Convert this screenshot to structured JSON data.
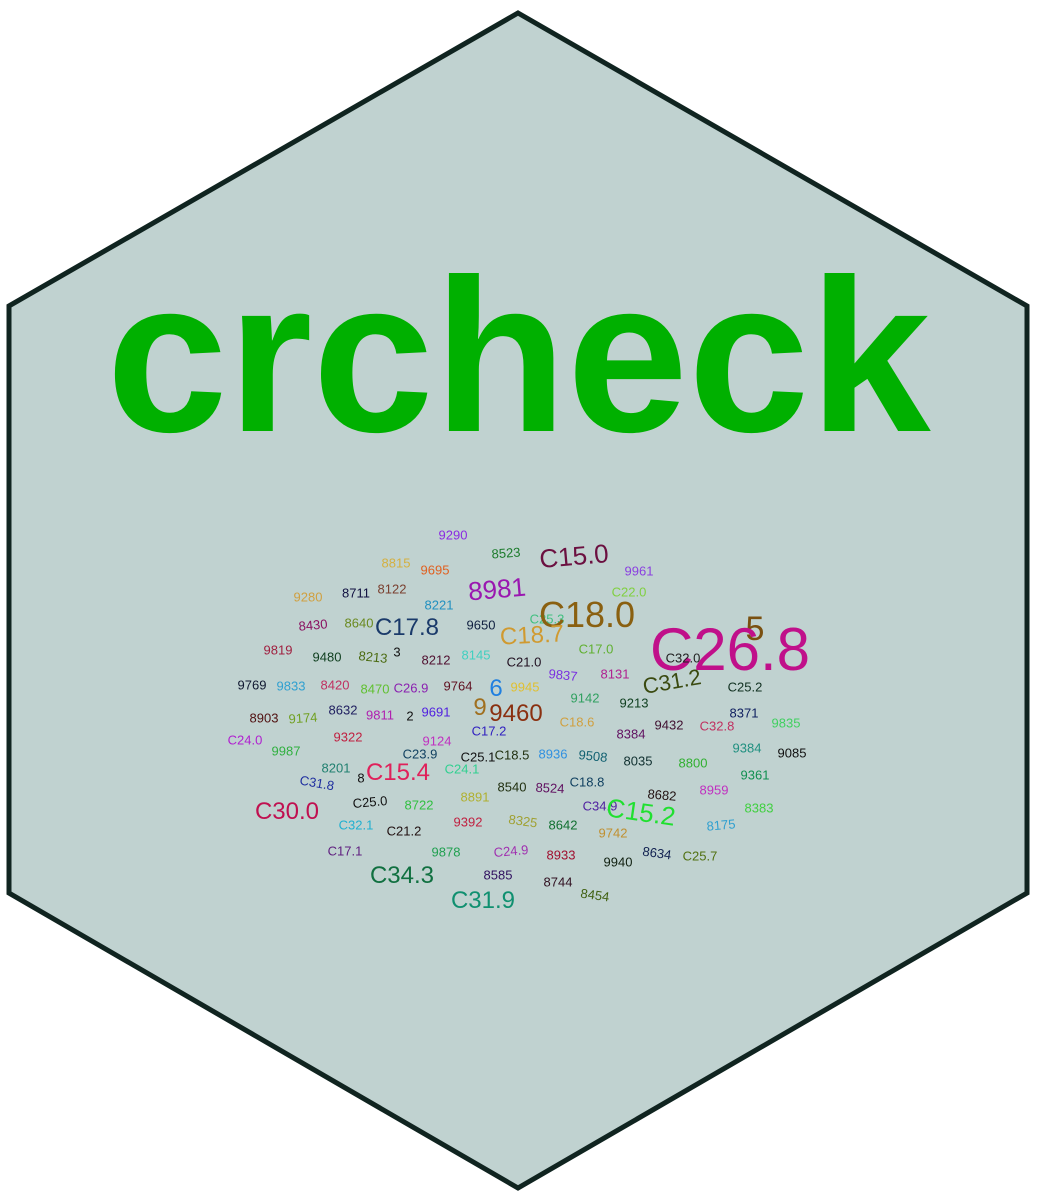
{
  "sticker": {
    "fill": "#c0d2d0",
    "stroke": "#102420"
  },
  "title": {
    "text": "crcheck",
    "color": "#00b000"
  },
  "word_cloud": [
    {
      "text": "9290",
      "color": "#8a2be2"
    },
    {
      "text": "8523",
      "color": "#1a7a2a"
    },
    {
      "text": "C15.0",
      "color": "#6b1040"
    },
    {
      "text": "8815",
      "color": "#d4b040"
    },
    {
      "text": "9695",
      "color": "#e06020"
    },
    {
      "text": "8981",
      "color": "#9a18b0"
    },
    {
      "text": "9961",
      "color": "#8a40e0"
    },
    {
      "text": "9280",
      "color": "#d0a040"
    },
    {
      "text": "8711",
      "color": "#101040"
    },
    {
      "text": "8122",
      "color": "#7a4030"
    },
    {
      "text": "8221",
      "color": "#2090c0"
    },
    {
      "text": "C25.3",
      "color": "#40c080"
    },
    {
      "text": "C22.0",
      "color": "#80d040"
    },
    {
      "text": "C18.0",
      "color": "#8a6010"
    },
    {
      "text": "8430",
      "color": "#8a1060"
    },
    {
      "text": "8640",
      "color": "#6a8a20"
    },
    {
      "text": "C17.8",
      "color": "#1a3a6a"
    },
    {
      "text": "9650",
      "color": "#102040"
    },
    {
      "text": "C18.7",
      "color": "#d09a30"
    },
    {
      "text": "5",
      "color": "#7a5010"
    },
    {
      "text": "C26.8",
      "color": "#c0108a"
    },
    {
      "text": "9819",
      "color": "#a02040"
    },
    {
      "text": "9480",
      "color": "#104020"
    },
    {
      "text": "8213",
      "color": "#4a6a10"
    },
    {
      "text": "3",
      "color": "#101010"
    },
    {
      "text": "8212",
      "color": "#501030"
    },
    {
      "text": "8145",
      "color": "#40d0c0"
    },
    {
      "text": "C21.0",
      "color": "#201020"
    },
    {
      "text": "C17.0",
      "color": "#60b030"
    },
    {
      "text": "C32.0",
      "color": "#202020"
    },
    {
      "text": "9837",
      "color": "#7a30e0"
    },
    {
      "text": "8131",
      "color": "#b02090"
    },
    {
      "text": "C31.2",
      "color": "#3a4a10"
    },
    {
      "text": "C25.2",
      "color": "#103020"
    },
    {
      "text": "9769",
      "color": "#101830"
    },
    {
      "text": "9833",
      "color": "#30a0d0"
    },
    {
      "text": "8420",
      "color": "#c03060"
    },
    {
      "text": "8470",
      "color": "#60c030"
    },
    {
      "text": "C26.9",
      "color": "#8a20b0"
    },
    {
      "text": "9764",
      "color": "#601020"
    },
    {
      "text": "6",
      "color": "#2080e0"
    },
    {
      "text": "9945",
      "color": "#e0c030"
    },
    {
      "text": "9142",
      "color": "#30a060"
    },
    {
      "text": "9213",
      "color": "#104020"
    },
    {
      "text": "8903",
      "color": "#501010"
    },
    {
      "text": "9174",
      "color": "#70a020"
    },
    {
      "text": "8632",
      "color": "#202060"
    },
    {
      "text": "9811",
      "color": "#b020b0"
    },
    {
      "text": "2",
      "color": "#101010"
    },
    {
      "text": "9691",
      "color": "#5020e0"
    },
    {
      "text": "9",
      "color": "#a07020"
    },
    {
      "text": "9460",
      "color": "#8a3010"
    },
    {
      "text": "C18.6",
      "color": "#d0a040"
    },
    {
      "text": "8384",
      "color": "#601060"
    },
    {
      "text": "9432",
      "color": "#401030"
    },
    {
      "text": "C32.8",
      "color": "#c03060"
    },
    {
      "text": "8371",
      "color": "#102060"
    },
    {
      "text": "9835",
      "color": "#40d060"
    },
    {
      "text": "C24.0",
      "color": "#b020d0"
    },
    {
      "text": "9987",
      "color": "#30b040"
    },
    {
      "text": "9322",
      "color": "#c02040"
    },
    {
      "text": "9124",
      "color": "#c030c0"
    },
    {
      "text": "C17.2",
      "color": "#3020c0"
    },
    {
      "text": "9384",
      "color": "#209080"
    },
    {
      "text": "9085",
      "color": "#101010"
    },
    {
      "text": "8201",
      "color": "#208070"
    },
    {
      "text": "C23.9",
      "color": "#104060"
    },
    {
      "text": "C25.1",
      "color": "#101010"
    },
    {
      "text": "C18.5",
      "color": "#203010"
    },
    {
      "text": "8936",
      "color": "#3090e0"
    },
    {
      "text": "9508",
      "color": "#106070"
    },
    {
      "text": "8035",
      "color": "#103030"
    },
    {
      "text": "8800",
      "color": "#30b030"
    },
    {
      "text": "C31.8",
      "color": "#2030a0"
    },
    {
      "text": "8",
      "color": "#101010"
    },
    {
      "text": "C15.4",
      "color": "#e0205a"
    },
    {
      "text": "C24.1",
      "color": "#30d090"
    },
    {
      "text": "9361",
      "color": "#109050"
    },
    {
      "text": "8540",
      "color": "#203010"
    },
    {
      "text": "8524",
      "color": "#601060"
    },
    {
      "text": "C18.8",
      "color": "#104060"
    },
    {
      "text": "8682",
      "color": "#201010"
    },
    {
      "text": "8959",
      "color": "#c030c0"
    },
    {
      "text": "C30.0",
      "color": "#c01050"
    },
    {
      "text": "C25.0",
      "color": "#101010"
    },
    {
      "text": "8722",
      "color": "#30c040"
    },
    {
      "text": "8891",
      "color": "#b0b030"
    },
    {
      "text": "C34.9",
      "color": "#5020a0"
    },
    {
      "text": "C15.2",
      "color": "#20e030"
    },
    {
      "text": "8383",
      "color": "#40d040"
    },
    {
      "text": "C32.1",
      "color": "#20b0d0"
    },
    {
      "text": "C21.2",
      "color": "#201010"
    },
    {
      "text": "9392",
      "color": "#c02040"
    },
    {
      "text": "8325",
      "color": "#a0a030"
    },
    {
      "text": "8642",
      "color": "#107030"
    },
    {
      "text": "9742",
      "color": "#c09030"
    },
    {
      "text": "8175",
      "color": "#30a0d0"
    },
    {
      "text": "C17.1",
      "color": "#602080"
    },
    {
      "text": "9878",
      "color": "#20a050"
    },
    {
      "text": "C24.9",
      "color": "#a030b0"
    },
    {
      "text": "8933",
      "color": "#a01030"
    },
    {
      "text": "9940",
      "color": "#102010"
    },
    {
      "text": "8634",
      "color": "#102050"
    },
    {
      "text": "C25.7",
      "color": "#507010"
    },
    {
      "text": "C34.3",
      "color": "#107040"
    },
    {
      "text": "8585",
      "color": "#301060"
    },
    {
      "text": "8744",
      "color": "#301020"
    },
    {
      "text": "8454",
      "color": "#406010"
    },
    {
      "text": "C31.9",
      "color": "#109070"
    }
  ]
}
